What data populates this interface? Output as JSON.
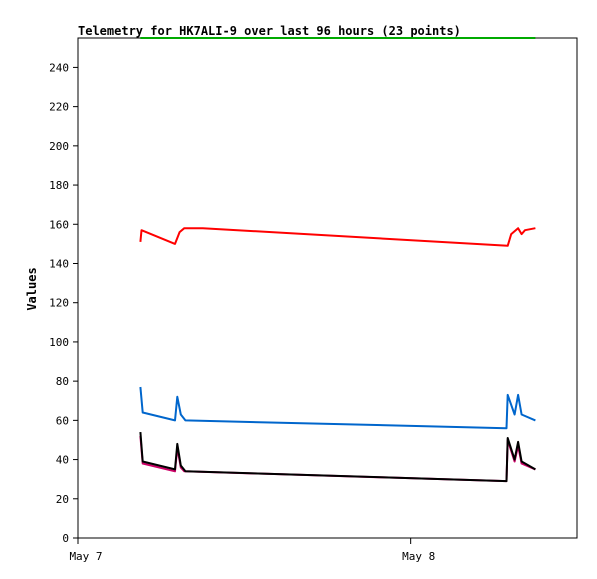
{
  "chart_data": {
    "type": "line",
    "title": "Telemetry for HK7ALI-9 over last 96 hours (23 points)",
    "xlabel": "",
    "ylabel": "Values",
    "xlim": [
      "2023-05-07 00:00",
      "2023-05-08 12:00"
    ],
    "ylim": [
      0,
      255
    ],
    "yticks": [
      0,
      20,
      40,
      60,
      80,
      100,
      120,
      140,
      160,
      180,
      200,
      220,
      240
    ],
    "xticks": [
      {
        "label": "May 7",
        "at": "2023-05-07 00:00"
      },
      {
        "label": "May 8",
        "at": "2023-05-08 00:00"
      }
    ],
    "legend": false,
    "grid": false,
    "series": [
      {
        "color": "#00aa00",
        "points": [
          [
            "2023-05-07 04:30",
            255
          ],
          [
            "2023-05-08 09:00",
            255
          ]
        ]
      },
      {
        "color": "#ff0000",
        "points": [
          [
            "2023-05-07 04:30",
            151
          ],
          [
            "2023-05-07 04:35",
            157
          ],
          [
            "2023-05-07 07:00",
            150
          ],
          [
            "2023-05-07 07:20",
            156
          ],
          [
            "2023-05-07 07:40",
            158
          ],
          [
            "2023-05-07 09:00",
            158
          ],
          [
            "2023-05-08 07:00",
            149
          ],
          [
            "2023-05-08 07:15",
            155
          ],
          [
            "2023-05-08 07:45",
            158
          ],
          [
            "2023-05-08 08:00",
            155
          ],
          [
            "2023-05-08 08:15",
            157
          ],
          [
            "2023-05-08 09:00",
            158
          ]
        ]
      },
      {
        "color": "#0066cc",
        "points": [
          [
            "2023-05-07 04:30",
            77
          ],
          [
            "2023-05-07 04:40",
            64
          ],
          [
            "2023-05-07 07:00",
            60
          ],
          [
            "2023-05-07 07:10",
            72
          ],
          [
            "2023-05-07 07:25",
            63
          ],
          [
            "2023-05-07 07:45",
            60
          ],
          [
            "2023-05-08 06:55",
            56
          ],
          [
            "2023-05-08 07:00",
            73
          ],
          [
            "2023-05-08 07:30",
            63
          ],
          [
            "2023-05-08 07:45",
            73
          ],
          [
            "2023-05-08 08:00",
            63
          ],
          [
            "2023-05-08 09:00",
            60
          ]
        ]
      },
      {
        "color": "#cc0066",
        "points": [
          [
            "2023-05-07 04:30",
            52
          ],
          [
            "2023-05-07 04:40",
            38
          ],
          [
            "2023-05-07 07:00",
            34
          ],
          [
            "2023-05-07 07:10",
            46
          ],
          [
            "2023-05-07 07:25",
            36
          ],
          [
            "2023-05-07 07:40",
            34
          ],
          [
            "2023-05-08 06:55",
            29
          ],
          [
            "2023-05-08 07:00",
            50
          ],
          [
            "2023-05-08 07:30",
            39
          ],
          [
            "2023-05-08 07:45",
            47
          ],
          [
            "2023-05-08 08:00",
            38
          ],
          [
            "2023-05-08 09:00",
            35
          ]
        ]
      },
      {
        "color": "#000000",
        "points": [
          [
            "2023-05-07 04:30",
            54
          ],
          [
            "2023-05-07 04:40",
            39
          ],
          [
            "2023-05-07 07:00",
            35
          ],
          [
            "2023-05-07 07:10",
            48
          ],
          [
            "2023-05-07 07:25",
            37
          ],
          [
            "2023-05-07 07:45",
            34
          ],
          [
            "2023-05-08 06:55",
            29
          ],
          [
            "2023-05-08 07:00",
            51
          ],
          [
            "2023-05-08 07:30",
            40
          ],
          [
            "2023-05-08 07:45",
            49
          ],
          [
            "2023-05-08 08:00",
            39
          ],
          [
            "2023-05-08 09:00",
            35
          ]
        ]
      }
    ]
  }
}
